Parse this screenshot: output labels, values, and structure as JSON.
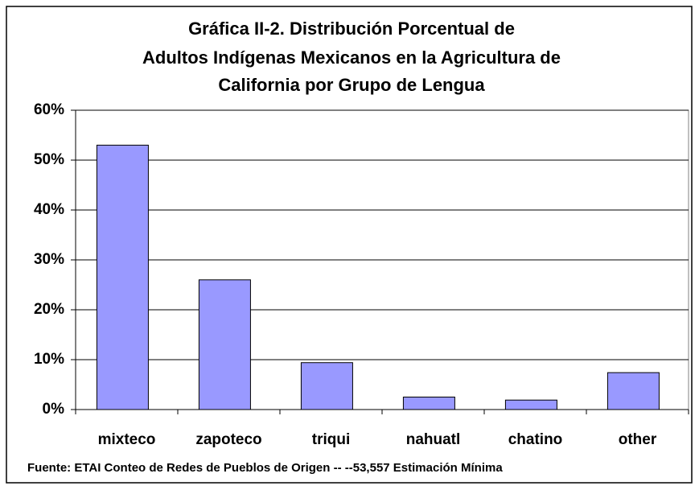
{
  "chart_data": {
    "type": "bar",
    "title": [
      "Gráfica II-2.  Distribución Porcentual de",
      "Adultos Indígenas Mexicanos en la Agricultura de",
      "California por Grupo de Lengua"
    ],
    "categories": [
      "mixteco",
      "zapoteco",
      "triqui",
      "nahuatl",
      "chatino",
      "other"
    ],
    "values": [
      53,
      26,
      9.4,
      2.5,
      1.9,
      7.4
    ],
    "color": "#9999ff",
    "ylim": [
      0,
      60
    ],
    "yticks": [
      {
        "value": 0,
        "label": "0%"
      },
      {
        "value": 10,
        "label": "10%"
      },
      {
        "value": 20,
        "label": "20%"
      },
      {
        "value": 30,
        "label": "30%"
      },
      {
        "value": 40,
        "label": "40%"
      },
      {
        "value": 50,
        "label": "50%"
      },
      {
        "value": 60,
        "label": "60%"
      }
    ],
    "grid": true,
    "footnote": "Fuente: ETAI Conteo de Redes  de Pueblos de Origen -- --53,557 Estimación Mínima"
  }
}
